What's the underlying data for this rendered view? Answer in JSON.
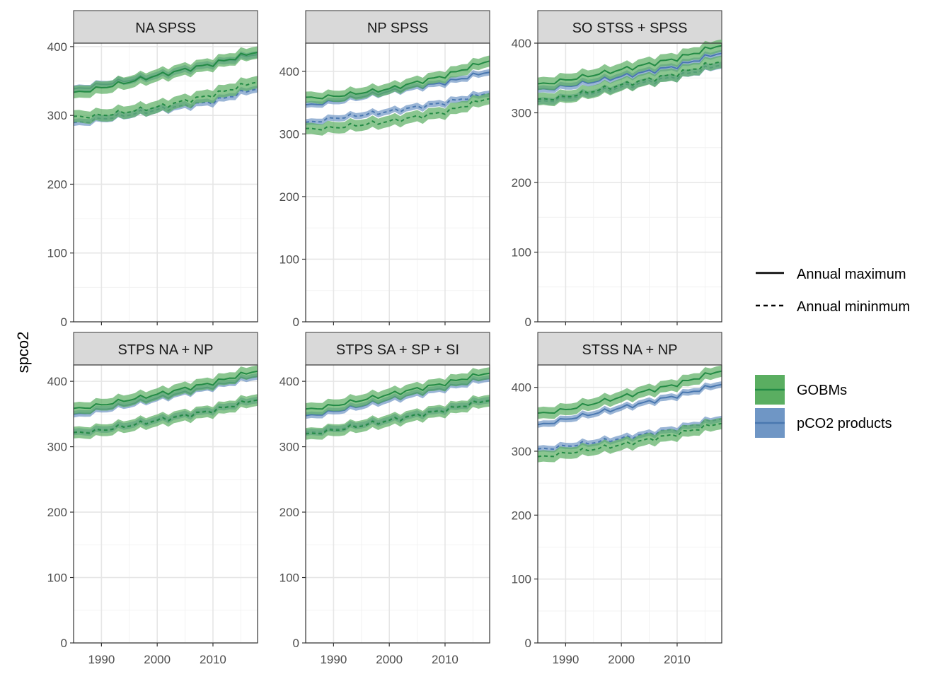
{
  "chart_data": {
    "type": "line",
    "ylabel": "spco2",
    "x_ticks": [
      1990,
      2000,
      2010
    ],
    "y_ticks": [
      0,
      100,
      200,
      300,
      400
    ],
    "xlim": [
      1985,
      2018
    ],
    "grid": true,
    "legend_position": "right",
    "linetype_legend": [
      {
        "label": "Annual maximum",
        "style": "solid"
      },
      {
        "label": "Annual mininmum",
        "style": "dashed"
      }
    ],
    "color_legend": [
      {
        "label": "GOBMs",
        "color": "#238b45",
        "fill": "#5aae61"
      },
      {
        "label": "pCO2 products",
        "color": "#4a78b0",
        "fill": "#6f96c5"
      }
    ],
    "panels": [
      {
        "title": "NA SPSS",
        "ylim": [
          0,
          405
        ],
        "GOBMs_max": {
          "years": [
            1985,
            1990,
            2000,
            2010,
            2018
          ],
          "values": [
            332,
            340,
            358,
            375,
            393
          ]
        },
        "GOBMs_min": {
          "years": [
            1985,
            1990,
            2000,
            2010,
            2018
          ],
          "values": [
            297,
            300,
            312,
            330,
            350
          ]
        },
        "pCO2_max": {
          "years": [
            1985,
            1990,
            2000,
            2010,
            2018
          ],
          "values": [
            337,
            345,
            358,
            375,
            390
          ]
        },
        "pCO2_min": {
          "years": [
            1985,
            1990,
            2000,
            2010,
            2018
          ],
          "values": [
            288,
            295,
            308,
            320,
            340
          ]
        }
      },
      {
        "title": "NP SPSS",
        "ylim": [
          0,
          445
        ],
        "GOBMs_max": {
          "years": [
            1985,
            1990,
            2000,
            2010,
            2018
          ],
          "values": [
            357,
            360,
            372,
            393,
            418
          ]
        },
        "GOBMs_min": {
          "years": [
            1985,
            1990,
            2000,
            2010,
            2018
          ],
          "values": [
            307,
            310,
            320,
            335,
            358
          ]
        },
        "pCO2_max": {
          "years": [
            1985,
            1990,
            2000,
            2010,
            2018
          ],
          "values": [
            345,
            352,
            368,
            382,
            400
          ]
        },
        "pCO2_min": {
          "years": [
            1985,
            1990,
            2000,
            2010,
            2018
          ],
          "values": [
            317,
            325,
            336,
            350,
            366
          ]
        }
      },
      {
        "title": "SO STSS + SPSS",
        "ylim": [
          0,
          400
        ],
        "GOBMs_max": {
          "years": [
            1985,
            1990,
            2000,
            2010,
            2018
          ],
          "values": [
            340,
            347,
            362,
            378,
            398
          ]
        },
        "GOBMs_min": {
          "years": [
            1985,
            1990,
            2000,
            2010,
            2018
          ],
          "values": [
            318,
            323,
            340,
            356,
            375
          ]
        },
        "pCO2_max": {
          "years": [
            1985,
            1990,
            2000,
            2010,
            2018
          ],
          "values": [
            332,
            338,
            352,
            367,
            387
          ]
        },
        "pCO2_min": {
          "years": [
            1985,
            1990,
            2000,
            2010,
            2018
          ],
          "values": [
            315,
            321,
            337,
            352,
            370
          ]
        }
      },
      {
        "title": "STPS NA + NP",
        "ylim": [
          0,
          425
        ],
        "GOBMs_max": {
          "years": [
            1985,
            1990,
            2000,
            2010,
            2018
          ],
          "values": [
            357,
            364,
            380,
            398,
            417
          ]
        },
        "GOBMs_min": {
          "years": [
            1985,
            1990,
            2000,
            2010,
            2018
          ],
          "values": [
            320,
            325,
            340,
            355,
            373
          ]
        },
        "pCO2_max": {
          "years": [
            1985,
            1990,
            2000,
            2010,
            2018
          ],
          "values": [
            348,
            357,
            374,
            392,
            409
          ]
        },
        "pCO2_min": {
          "years": [
            1985,
            1990,
            2000,
            2010,
            2018
          ],
          "values": [
            321,
            326,
            341,
            356,
            373
          ]
        }
      },
      {
        "title": "STPS SA + SP + SI",
        "ylim": [
          0,
          425
        ],
        "GOBMs_max": {
          "years": [
            1985,
            1990,
            2000,
            2010,
            2018
          ],
          "values": [
            356,
            363,
            380,
            397,
            414
          ]
        },
        "GOBMs_min": {
          "years": [
            1985,
            1990,
            2000,
            2010,
            2018
          ],
          "values": [
            318,
            325,
            340,
            356,
            372
          ]
        },
        "pCO2_max": {
          "years": [
            1985,
            1990,
            2000,
            2010,
            2018
          ],
          "values": [
            346,
            354,
            372,
            390,
            406
          ]
        },
        "pCO2_min": {
          "years": [
            1985,
            1990,
            2000,
            2010,
            2018
          ],
          "values": [
            320,
            327,
            341,
            357,
            373
          ]
        }
      },
      {
        "title": "STSS NA + NP",
        "ylim": [
          0,
          435
        ],
        "GOBMs_max": {
          "years": [
            1985,
            1990,
            2000,
            2010,
            2018
          ],
          "values": [
            358,
            365,
            385,
            405,
            427
          ]
        },
        "GOBMs_min": {
          "years": [
            1985,
            1990,
            2000,
            2010,
            2018
          ],
          "values": [
            290,
            297,
            310,
            327,
            345
          ]
        },
        "pCO2_max": {
          "years": [
            1985,
            1990,
            2000,
            2010,
            2018
          ],
          "values": [
            340,
            350,
            368,
            387,
            406
          ]
        },
        "pCO2_min": {
          "years": [
            1985,
            1990,
            2000,
            2010,
            2018
          ],
          "values": [
            302,
            308,
            320,
            335,
            352
          ]
        }
      }
    ]
  }
}
